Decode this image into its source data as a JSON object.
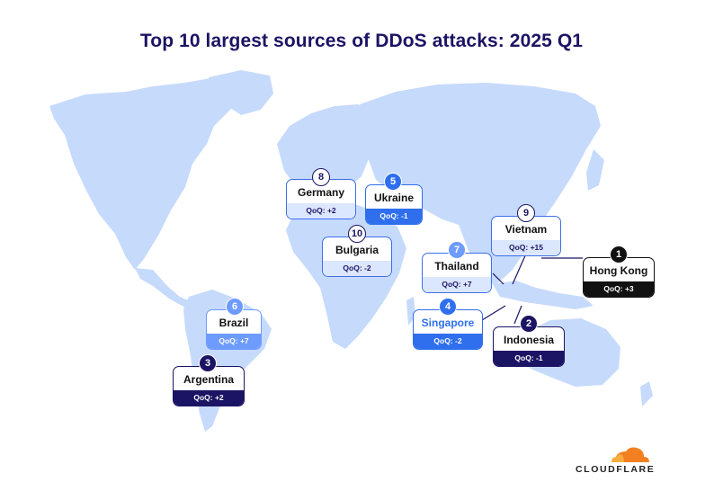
{
  "title": "Top 10 largest sources of DDoS attacks: 2025 Q1",
  "colors": {
    "land": "#c6dafc",
    "navy": "#1b1464",
    "blue": "#2f6fee",
    "accent": "#f38020"
  },
  "brand": "CLOUDFLARE",
  "countries": [
    {
      "rank": "1",
      "name": "Hong Kong",
      "qoq": "QoQ: +3"
    },
    {
      "rank": "2",
      "name": "Indonesia",
      "qoq": "QoQ: -1"
    },
    {
      "rank": "3",
      "name": "Argentina",
      "qoq": "QoQ: +2"
    },
    {
      "rank": "4",
      "name": "Singapore",
      "qoq": "QoQ: -2"
    },
    {
      "rank": "5",
      "name": "Ukraine",
      "qoq": "QoQ: -1"
    },
    {
      "rank": "6",
      "name": "Brazil",
      "qoq": "QoQ: +7"
    },
    {
      "rank": "7",
      "name": "Thailand",
      "qoq": "QoQ: +7"
    },
    {
      "rank": "8",
      "name": "Germany",
      "qoq": "QoQ: +2"
    },
    {
      "rank": "9",
      "name": "Vietnam",
      "qoq": "QoQ: +15"
    },
    {
      "rank": "10",
      "name": "Bulgaria",
      "qoq": "QoQ: -2"
    }
  ]
}
